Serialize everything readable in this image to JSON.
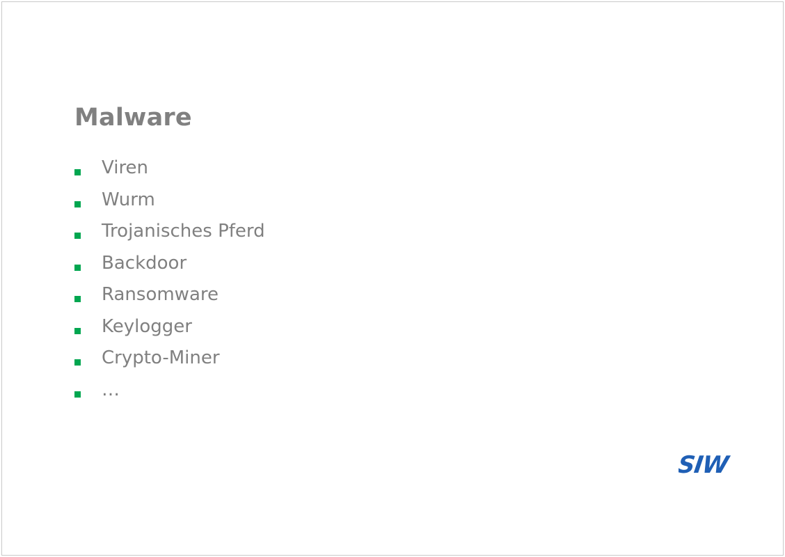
{
  "slide": {
    "title": "Malware",
    "bullet_color": "#00a650",
    "text_color": "#808080",
    "items": [
      {
        "label": "Viren"
      },
      {
        "label": "Wurm"
      },
      {
        "label": "Trojanisches Pferd"
      },
      {
        "label": "Backdoor"
      },
      {
        "label": "Ransomware"
      },
      {
        "label": "Keylogger"
      },
      {
        "label": "Crypto-Miner"
      },
      {
        "label": "…"
      }
    ],
    "logo": {
      "text": "SIW",
      "color": "#1f5fb5"
    }
  }
}
